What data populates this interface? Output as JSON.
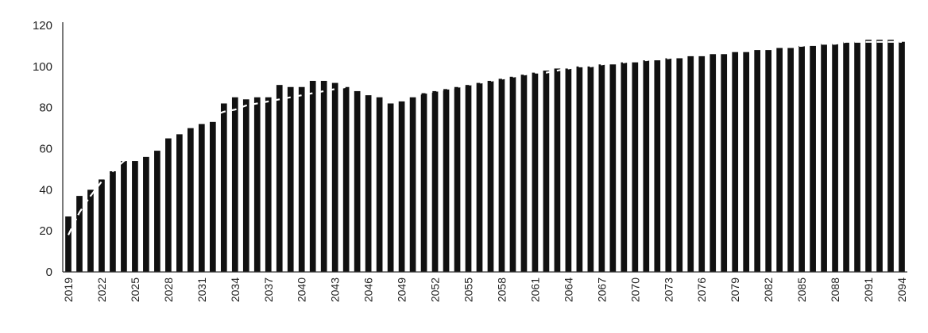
{
  "chart_data": {
    "type": "bar",
    "title": "",
    "xlabel": "",
    "ylabel": "",
    "x_start": 2019,
    "ylim": [
      0,
      120
    ],
    "y_ticks": [
      "0",
      "20",
      "40",
      "60",
      "80",
      "100",
      "120"
    ],
    "x_tick_labels": [
      "2019",
      "2022",
      "2025",
      "2028",
      "2031",
      "2034",
      "2037",
      "2040",
      "2043",
      "2046",
      "2049",
      "2052",
      "2055",
      "2058",
      "2061",
      "2064",
      "2067",
      "2070",
      "2073",
      "2076",
      "2079",
      "2082",
      "2085",
      "2088",
      "2091",
      "2094"
    ],
    "grid": false,
    "legend": "none",
    "colors": {
      "bar": "#111111",
      "trend": "#ffffff",
      "axis": "#333333"
    },
    "series": [
      {
        "type": "bar",
        "values": [
          27,
          37,
          40,
          45,
          49,
          54,
          54,
          56,
          59,
          65,
          67,
          70,
          72,
          73,
          82,
          85,
          84,
          85,
          85,
          91,
          90,
          90,
          93,
          93,
          92,
          90,
          88,
          86,
          85,
          82,
          83,
          85,
          87,
          88,
          89,
          90,
          91,
          92,
          93,
          94,
          95,
          96,
          97,
          98,
          99,
          99,
          100,
          100,
          101,
          101,
          102,
          102,
          103,
          103,
          104,
          104,
          105,
          105,
          106,
          106,
          107,
          107,
          108,
          108,
          109,
          109,
          110,
          110,
          111,
          111,
          112,
          112,
          113,
          113,
          113,
          112
        ]
      },
      {
        "type": "line",
        "style": "dashed",
        "values": [
          18,
          29,
          37,
          44,
          49,
          54,
          57,
          61,
          63,
          66,
          69,
          72,
          74,
          76,
          78,
          79,
          81,
          82,
          83,
          84,
          85,
          86,
          87,
          88,
          89,
          90,
          90,
          88,
          87,
          86,
          85,
          86,
          87,
          88,
          89,
          90,
          91,
          92,
          93,
          94,
          95,
          96,
          97,
          97,
          98,
          99,
          100,
          100,
          101,
          102,
          102,
          103,
          103,
          104,
          104,
          105,
          106,
          106,
          107,
          107,
          108,
          108,
          109,
          109,
          110,
          110,
          110,
          111,
          111,
          111,
          112,
          112,
          112,
          112,
          112,
          112
        ]
      }
    ]
  }
}
